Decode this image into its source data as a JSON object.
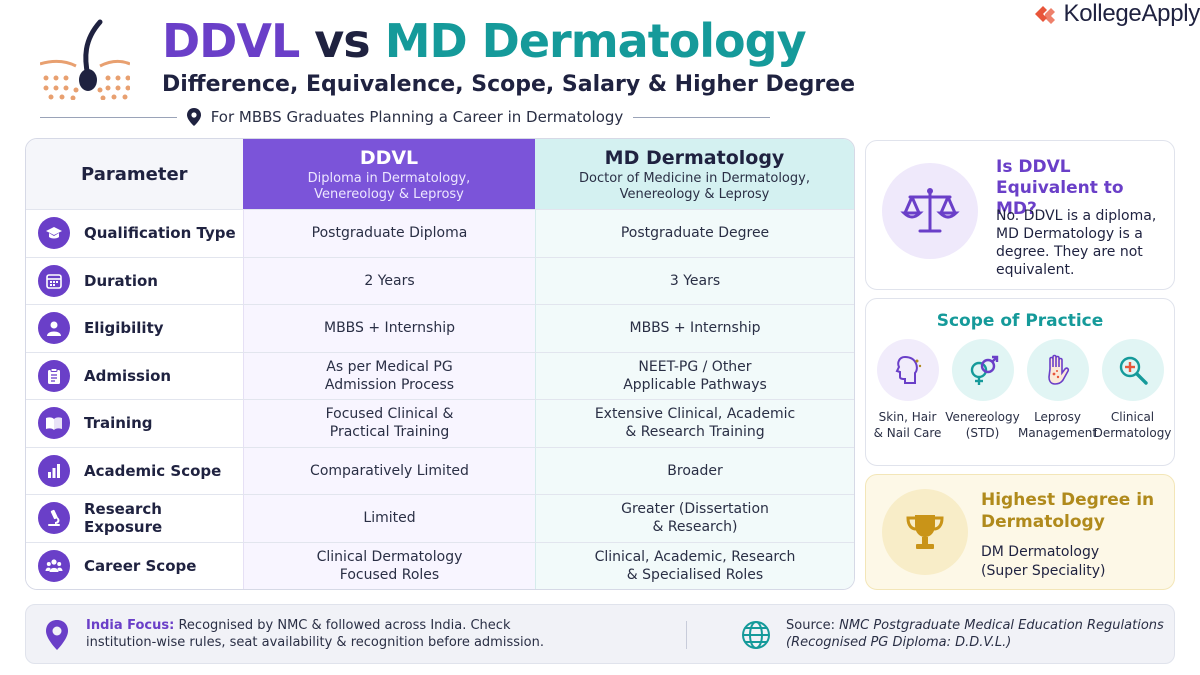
{
  "header": {
    "title_part1": "DDVL",
    "title_part2": "vs",
    "title_part3": "MD Dermatology",
    "subtitle": "Difference, Equivalence, Scope, Salary & Higher Degree",
    "tagline": "For MBBS Graduates Planning a Career in Dermatology",
    "brand": "KollegeApply",
    "colors": {
      "purple": "#6a3fc8",
      "teal": "#159a9a",
      "navy": "#1f2240",
      "gold": "#b08a1c"
    }
  },
  "table": {
    "header": {
      "param": "Parameter",
      "ddvl_title": "DDVL",
      "ddvl_sub": "Diploma in Dermatology,\nVenereology & Leprosy",
      "md_title": "MD Dermatology",
      "md_sub": "Doctor of Medicine in Dermatology,\nVenereology & Leprosy"
    },
    "rows": [
      {
        "icon": "graduation-cap-icon",
        "param": "Qualification Type",
        "ddvl": "Postgraduate Diploma",
        "md": "Postgraduate Degree"
      },
      {
        "icon": "calendar-icon",
        "param": "Duration",
        "ddvl": "2 Years",
        "md": "3 Years"
      },
      {
        "icon": "person-icon",
        "param": "Eligibility",
        "ddvl": "MBBS + Internship",
        "md": "MBBS + Internship"
      },
      {
        "icon": "clipboard-icon",
        "param": "Admission",
        "ddvl": "As per Medical PG\nAdmission Process",
        "md": "NEET-PG / Other\nApplicable Pathways"
      },
      {
        "icon": "book-icon",
        "param": "Training",
        "ddvl": "Focused Clinical &\nPractical Training",
        "md": "Extensive Clinical, Academic\n& Research Training"
      },
      {
        "icon": "bar-chart-icon",
        "param": "Academic Scope",
        "ddvl": "Comparatively Limited",
        "md": "Broader"
      },
      {
        "icon": "microscope-icon",
        "param": "Research Exposure",
        "ddvl": "Limited",
        "md": "Greater (Dissertation\n& Research)"
      },
      {
        "icon": "group-icon",
        "param": "Career Scope",
        "ddvl": "Clinical Dermatology\nFocused Roles",
        "md": "Clinical, Academic, Research\n& Specialised Roles"
      }
    ]
  },
  "equivalence": {
    "icon": "balance-scale-icon",
    "title": "Is DDVL Equivalent to MD?",
    "body": "No. DDVL is a diploma, MD Dermatology is a degree. They are not equivalent."
  },
  "scope": {
    "title": "Scope of Practice",
    "items": [
      {
        "icon": "face-profile-icon",
        "label": "Skin, Hair\n& Nail Care"
      },
      {
        "icon": "gender-symbol-icon",
        "label": "Venereology\n(STD)"
      },
      {
        "icon": "hand-icon",
        "label": "Leprosy\nManagement"
      },
      {
        "icon": "magnifier-plus-icon",
        "label": "Clinical\nDermatology"
      }
    ]
  },
  "highest_degree": {
    "icon": "trophy-icon",
    "title": "Highest Degree in Dermatology",
    "body": "DM Dermatology\n(Super Speciality)"
  },
  "footer": {
    "left_label": "India Focus:",
    "left_text": "Recognised by NMC & followed across India. Check institution-wise rules, seat availability & recognition before admission.",
    "right_label": "Source:",
    "right_text": "NMC Postgraduate Medical Education Regulations (Recognised PG Diploma: D.D.V.L.)"
  }
}
